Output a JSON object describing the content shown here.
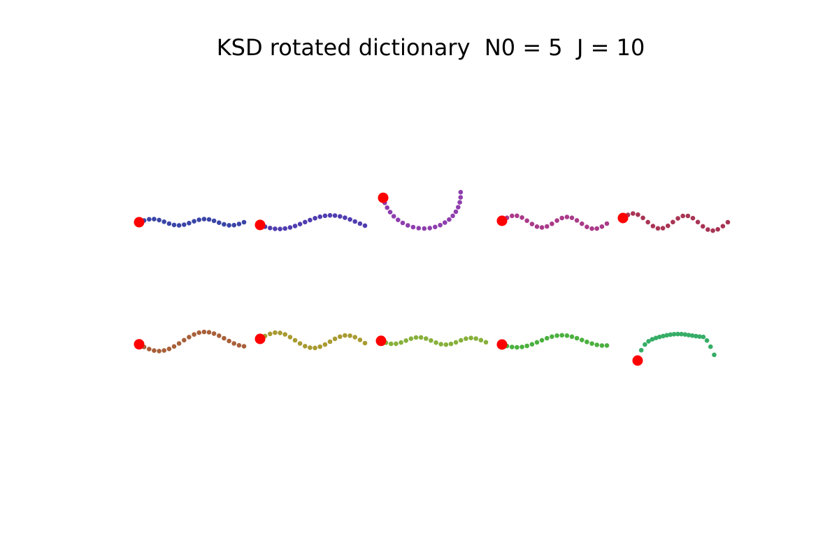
{
  "figure": {
    "title": "KSD rotated dictionary  N0 = 5  J = 10"
  },
  "marker_color": "#ff0000",
  "curves": [
    {
      "color": "#3a45a8",
      "shape": "wave",
      "amplitude": 0.45,
      "periods": 2.0,
      "phase": 0.0,
      "tilt": 0.0
    },
    {
      "color": "#4f3db0",
      "shape": "wave",
      "amplitude": 1.0,
      "periods": 1.0,
      "phase": 3.6,
      "tilt": 0.1
    },
    {
      "color": "#8e3eae",
      "shape": "hook"
    },
    {
      "color": "#aa3a8a",
      "shape": "wave",
      "amplitude": 0.8,
      "periods": 2.0,
      "phase": 0.0,
      "tilt": 0.4
    },
    {
      "color": "#a83454",
      "shape": "wave",
      "amplitude": 1.0,
      "periods": 2.0,
      "phase": 0.3,
      "tilt": 0.6
    },
    {
      "color": "#a8603a",
      "shape": "wave",
      "amplitude": 1.2,
      "periods": 1.2,
      "phase": 3.2,
      "tilt": -0.8
    },
    {
      "color": "#a89a30",
      "shape": "wave",
      "amplitude": 1.0,
      "periods": 1.5,
      "phase": 0.0,
      "tilt": 0.6
    },
    {
      "color": "#86b03a",
      "shape": "wave",
      "amplitude": 0.5,
      "periods": 2.0,
      "phase": 3.3,
      "tilt": 0.2
    },
    {
      "color": "#4bb03f",
      "shape": "wave",
      "amplitude": 0.8,
      "periods": 1.2,
      "phase": 3.6,
      "tilt": -0.3
    },
    {
      "color": "#36ad66",
      "shape": "arch"
    }
  ]
}
